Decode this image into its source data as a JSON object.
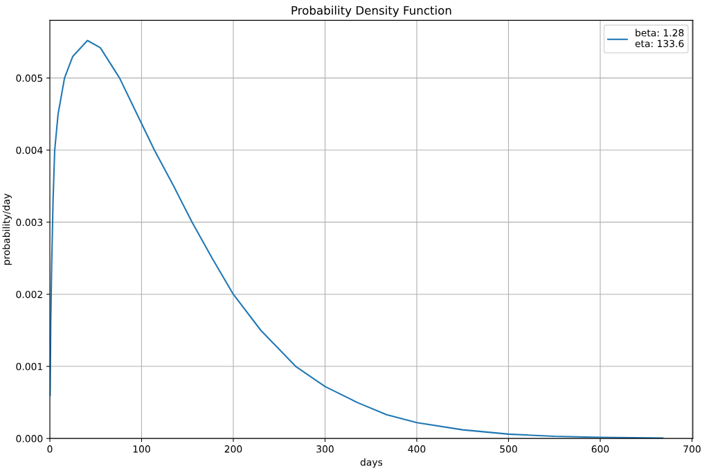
{
  "chart_data": {
    "type": "line",
    "title": "Probability Density Function",
    "xlabel": "days",
    "ylabel": "probability/day",
    "series": [
      {
        "name": "beta: 1.28\neta: 133.6",
        "color": "#1f77b4",
        "x": [
          0.3,
          1,
          2,
          3.5,
          5.3,
          9,
          16,
          25,
          41,
          55,
          76,
          95,
          114,
          135,
          155,
          177,
          200,
          230,
          268,
          300,
          335,
          367,
          400,
          450,
          500,
          550,
          600,
          668
        ],
        "values": [
          0.0006,
          0.0016,
          0.0024,
          0.0033,
          0.004,
          0.0045,
          0.005,
          0.0053,
          0.00552,
          0.00542,
          0.005,
          0.0045,
          0.004,
          0.0035,
          0.003,
          0.0025,
          0.002,
          0.0015,
          0.001,
          0.00072,
          0.0005,
          0.00033,
          0.00022,
          0.00012,
          6e-05,
          3e-05,
          1.5e-05,
          5e-06
        ]
      }
    ],
    "xlim": [
      0,
      701
    ],
    "xticks": [
      0,
      100,
      200,
      300,
      400,
      500,
      600,
      700
    ],
    "ylim": [
      0,
      0.0058
    ],
    "yticks": [
      {
        "value": 0,
        "label": "0.000"
      },
      {
        "value": 0.001,
        "label": "0.001"
      },
      {
        "value": 0.002,
        "label": "0.002"
      },
      {
        "value": 0.003,
        "label": "0.003"
      },
      {
        "value": 0.004,
        "label": "0.004"
      },
      {
        "value": 0.005,
        "label": "0.005"
      }
    ],
    "grid": true,
    "legend": "upper right",
    "marker": "none",
    "line_style": "solid"
  }
}
